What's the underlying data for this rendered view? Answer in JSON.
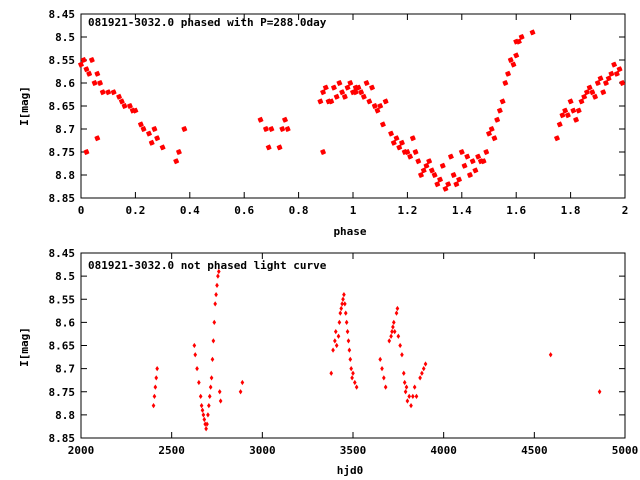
{
  "chart_data": [
    {
      "type": "scatter",
      "title": "081921-3032.0 phased with P=288.0day",
      "xlabel": "phase",
      "ylabel": "I[mag]",
      "xlim": [
        0,
        2
      ],
      "ylim": [
        8.85,
        8.45
      ],
      "y_inverted": true,
      "xticks": [
        "0",
        "0.2",
        "0.4",
        "0.6",
        "0.8",
        "1",
        "1.2",
        "1.4",
        "1.6",
        "1.8",
        "2"
      ],
      "yticks": [
        "8.45",
        "8.5",
        "8.55",
        "8.6",
        "8.65",
        "8.7",
        "8.75",
        "8.8",
        "8.85"
      ],
      "marker_color": "#ff0000",
      "marker": "star",
      "grid": false,
      "x": [
        0.0,
        0.01,
        0.02,
        0.03,
        0.04,
        0.05,
        0.06,
        0.07,
        0.08,
        0.1,
        0.12,
        0.14,
        0.15,
        0.16,
        0.18,
        0.19,
        0.2,
        0.22,
        0.23,
        0.25,
        0.26,
        0.27,
        0.28,
        0.02,
        0.06,
        0.3,
        0.35,
        0.36,
        0.38,
        0.66,
        0.68,
        0.69,
        0.7,
        0.73,
        0.74,
        0.75,
        0.76,
        0.88,
        0.89,
        0.9,
        0.91,
        0.92,
        0.93,
        0.94,
        0.95,
        0.96,
        0.97,
        0.98,
        1.0,
        1.01,
        1.02,
        1.03,
        1.04,
        1.05,
        1.06,
        1.07,
        1.08,
        1.09,
        1.1,
        1.11,
        1.12,
        1.14,
        1.15,
        1.16,
        1.17,
        1.18,
        1.19,
        1.2,
        1.21,
        1.22,
        1.23,
        1.24,
        1.25,
        1.26,
        1.27,
        1.28,
        1.29,
        1.3,
        1.31,
        1.32,
        1.33,
        1.34,
        1.35,
        1.36,
        1.37,
        1.38,
        1.39,
        1.4,
        1.41,
        1.42,
        1.43,
        1.44,
        1.45,
        1.46,
        1.47,
        1.48,
        1.49,
        1.5,
        1.51,
        1.52,
        1.53,
        1.54,
        1.55,
        1.56,
        1.57,
        1.58,
        1.59,
        1.6,
        1.61,
        1.62,
        1.66,
        1.75,
        1.76,
        1.77,
        1.78,
        1.79,
        1.8,
        1.81,
        1.82,
        1.83,
        1.84,
        1.85,
        1.86,
        1.87,
        1.88,
        1.89,
        1.9,
        1.91,
        1.92,
        1.93,
        1.94,
        1.95,
        1.96,
        1.97,
        1.98,
        1.99,
        0.89,
        1.6,
        1.01,
        0.99
      ],
      "y": [
        8.56,
        8.55,
        8.57,
        8.58,
        8.55,
        8.6,
        8.58,
        8.6,
        8.62,
        8.62,
        8.62,
        8.63,
        8.64,
        8.65,
        8.65,
        8.66,
        8.66,
        8.69,
        8.7,
        8.71,
        8.73,
        8.7,
        8.72,
        8.75,
        8.72,
        8.74,
        8.77,
        8.75,
        8.7,
        8.68,
        8.7,
        8.74,
        8.7,
        8.74,
        8.7,
        8.68,
        8.7,
        8.64,
        8.62,
        8.61,
        8.64,
        8.64,
        8.61,
        8.63,
        8.6,
        8.62,
        8.63,
        8.61,
        8.62,
        8.62,
        8.61,
        8.62,
        8.63,
        8.6,
        8.64,
        8.61,
        8.65,
        8.66,
        8.65,
        8.69,
        8.64,
        8.71,
        8.73,
        8.72,
        8.74,
        8.73,
        8.75,
        8.75,
        8.76,
        8.72,
        8.75,
        8.77,
        8.8,
        8.79,
        8.78,
        8.77,
        8.79,
        8.8,
        8.82,
        8.81,
        8.78,
        8.83,
        8.82,
        8.76,
        8.8,
        8.82,
        8.81,
        8.75,
        8.78,
        8.76,
        8.8,
        8.77,
        8.79,
        8.76,
        8.77,
        8.77,
        8.75,
        8.71,
        8.7,
        8.72,
        8.68,
        8.66,
        8.64,
        8.6,
        8.58,
        8.55,
        8.56,
        8.54,
        8.51,
        8.5,
        8.49,
        8.72,
        8.69,
        8.67,
        8.66,
        8.67,
        8.64,
        8.66,
        8.68,
        8.66,
        8.64,
        8.63,
        8.62,
        8.61,
        8.62,
        8.63,
        8.6,
        8.59,
        8.62,
        8.6,
        8.59,
        8.58,
        8.56,
        8.58,
        8.57,
        8.6,
        8.75,
        8.51,
        8.61,
        8.6
      ]
    },
    {
      "type": "scatter",
      "title": "081921-3032.0 not phased light curve",
      "xlabel": "hjd0",
      "ylabel": "I[mag]",
      "xlim": [
        2000,
        5000
      ],
      "ylim": [
        8.85,
        8.45
      ],
      "y_inverted": true,
      "xticks": [
        "2000",
        "2500",
        "3000",
        "3500",
        "4000",
        "4500",
        "5000"
      ],
      "yticks": [
        "8.45",
        "8.5",
        "8.55",
        "8.6",
        "8.65",
        "8.7",
        "8.75",
        "8.8",
        "8.85"
      ],
      "marker_color": "#ff0000",
      "marker": "diamond",
      "grid": false,
      "x": [
        2400,
        2405,
        2410,
        2415,
        2420,
        2625,
        2630,
        2640,
        2650,
        2660,
        2665,
        2670,
        2675,
        2680,
        2685,
        2690,
        2695,
        2700,
        2705,
        2710,
        2715,
        2720,
        2725,
        2730,
        2735,
        2740,
        2745,
        2750,
        2755,
        2760,
        2765,
        2770,
        2880,
        2890,
        3380,
        3390,
        3400,
        3405,
        3410,
        3420,
        3425,
        3430,
        3435,
        3440,
        3445,
        3450,
        3455,
        3460,
        3465,
        3470,
        3475,
        3480,
        3485,
        3490,
        3495,
        3500,
        3510,
        3520,
        3650,
        3660,
        3670,
        3680,
        3700,
        3710,
        3715,
        3720,
        3725,
        3730,
        3740,
        3745,
        3750,
        3760,
        3770,
        3780,
        3785,
        3790,
        3795,
        3800,
        3810,
        3820,
        3830,
        3840,
        3850,
        3870,
        3880,
        3890,
        3900,
        4590,
        4860
      ],
      "y": [
        8.78,
        8.76,
        8.74,
        8.72,
        8.7,
        8.65,
        8.67,
        8.7,
        8.73,
        8.76,
        8.78,
        8.79,
        8.8,
        8.81,
        8.82,
        8.83,
        8.82,
        8.8,
        8.78,
        8.76,
        8.74,
        8.72,
        8.68,
        8.64,
        8.6,
        8.56,
        8.54,
        8.52,
        8.5,
        8.49,
        8.75,
        8.77,
        8.75,
        8.73,
        8.71,
        8.66,
        8.64,
        8.62,
        8.65,
        8.63,
        8.6,
        8.58,
        8.57,
        8.56,
        8.55,
        8.54,
        8.56,
        8.58,
        8.6,
        8.62,
        8.64,
        8.66,
        8.68,
        8.7,
        8.72,
        8.71,
        8.73,
        8.74,
        8.68,
        8.7,
        8.72,
        8.74,
        8.64,
        8.63,
        8.62,
        8.61,
        8.6,
        8.62,
        8.58,
        8.57,
        8.63,
        8.65,
        8.67,
        8.71,
        8.73,
        8.75,
        8.74,
        8.77,
        8.76,
        8.78,
        8.76,
        8.74,
        8.76,
        8.72,
        8.71,
        8.7,
        8.69,
        8.67,
        8.75
      ]
    }
  ]
}
